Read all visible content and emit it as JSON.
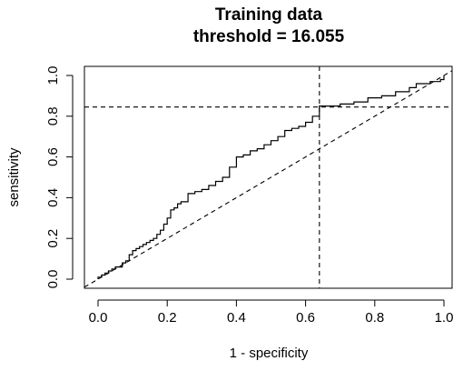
{
  "chart_data": {
    "type": "line",
    "title": "Training data",
    "subtitle": "threshold = 16.055",
    "xlabel": "1 - specificity",
    "ylabel": "sensitivity",
    "xlim": [
      0.0,
      1.0
    ],
    "ylim": [
      0.0,
      1.0
    ],
    "x_ticks": [
      "0.0",
      "0.2",
      "0.4",
      "0.6",
      "0.8",
      "1.0"
    ],
    "y_ticks": [
      "0.0",
      "0.2",
      "0.4",
      "0.6",
      "0.8",
      "1.0"
    ],
    "grid": false,
    "series": [
      {
        "x": [
          0.0,
          0.0,
          0.01,
          0.01,
          0.02,
          0.03,
          0.04,
          0.05,
          0.06,
          0.07,
          0.08,
          0.09,
          0.1,
          0.11,
          0.12,
          0.13,
          0.14,
          0.15,
          0.16,
          0.17,
          0.18,
          0.19,
          0.2,
          0.21,
          0.22,
          0.23,
          0.24,
          0.26,
          0.28,
          0.3,
          0.32,
          0.34,
          0.36,
          0.38,
          0.4,
          0.42,
          0.44,
          0.46,
          0.48,
          0.5,
          0.52,
          0.54,
          0.56,
          0.58,
          0.6,
          0.62,
          0.64,
          0.64,
          0.67,
          0.7,
          0.74,
          0.78,
          0.82,
          0.86,
          0.9,
          0.92,
          0.96,
          0.99,
          1.0
        ],
        "y": [
          0.0,
          0.01,
          0.01,
          0.02,
          0.03,
          0.04,
          0.05,
          0.06,
          0.06,
          0.08,
          0.09,
          0.12,
          0.14,
          0.15,
          0.16,
          0.17,
          0.18,
          0.19,
          0.2,
          0.22,
          0.24,
          0.27,
          0.3,
          0.34,
          0.35,
          0.37,
          0.38,
          0.42,
          0.43,
          0.44,
          0.46,
          0.48,
          0.5,
          0.55,
          0.6,
          0.61,
          0.63,
          0.64,
          0.66,
          0.68,
          0.7,
          0.73,
          0.74,
          0.75,
          0.77,
          0.8,
          0.84,
          0.85,
          0.85,
          0.86,
          0.87,
          0.89,
          0.9,
          0.92,
          0.94,
          0.96,
          0.97,
          0.98,
          1.0
        ]
      }
    ],
    "reference_lines": {
      "diagonal": [
        [
          0.0,
          0.0
        ],
        [
          1.0,
          1.0
        ]
      ],
      "vertical_x": 0.64,
      "horizontal_y": 0.845
    }
  }
}
